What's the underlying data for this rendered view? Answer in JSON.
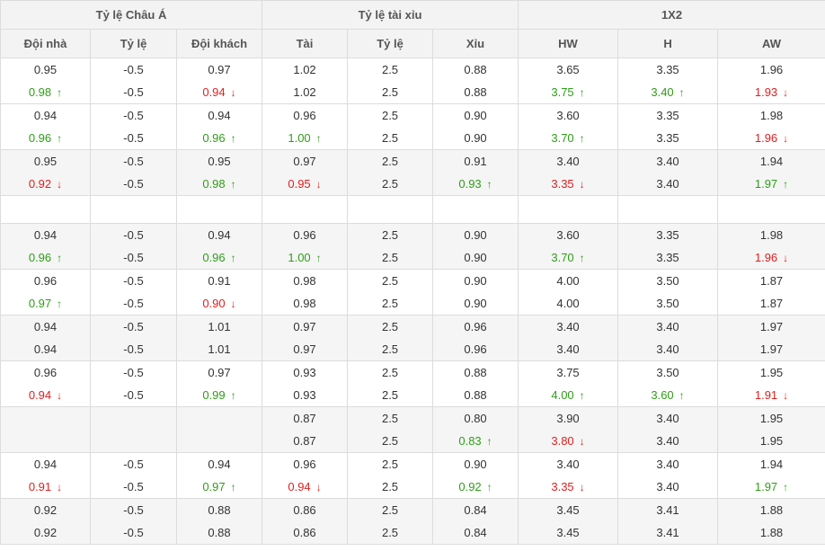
{
  "headers": {
    "groups": [
      "Tỷ lệ Châu Á",
      "Tỷ lệ tài xỉu",
      "1X2"
    ],
    "columns": [
      "Đội nhà",
      "Tỷ lệ",
      "Đội khách",
      "Tài",
      "Tỷ lệ",
      "Xỉu",
      "HW",
      "H",
      "AW"
    ]
  },
  "colors": {
    "up": "#2e9e17",
    "down": "#e02020",
    "neutral": "#333333"
  },
  "rows": [
    {
      "alt": false,
      "blank": false,
      "cells": [
        {
          "top": "0.95",
          "bottom": "0.98",
          "trend": "up"
        },
        {
          "top": "-0.5",
          "bottom": "-0.5",
          "trend": ""
        },
        {
          "top": "0.97",
          "bottom": "0.94",
          "trend": "down"
        },
        {
          "top": "1.02",
          "bottom": "1.02",
          "trend": ""
        },
        {
          "top": "2.5",
          "bottom": "2.5",
          "trend": ""
        },
        {
          "top": "0.88",
          "bottom": "0.88",
          "trend": ""
        },
        {
          "top": "3.65",
          "bottom": "3.75",
          "trend": "up"
        },
        {
          "top": "3.35",
          "bottom": "3.40",
          "trend": "up"
        },
        {
          "top": "1.96",
          "bottom": "1.93",
          "trend": "down"
        }
      ]
    },
    {
      "alt": false,
      "blank": false,
      "cells": [
        {
          "top": "0.94",
          "bottom": "0.96",
          "trend": "up"
        },
        {
          "top": "-0.5",
          "bottom": "-0.5",
          "trend": ""
        },
        {
          "top": "0.94",
          "bottom": "0.96",
          "trend": "up"
        },
        {
          "top": "0.96",
          "bottom": "1.00",
          "trend": "up"
        },
        {
          "top": "2.5",
          "bottom": "2.5",
          "trend": ""
        },
        {
          "top": "0.90",
          "bottom": "0.90",
          "trend": ""
        },
        {
          "top": "3.60",
          "bottom": "3.70",
          "trend": "up"
        },
        {
          "top": "3.35",
          "bottom": "3.35",
          "trend": ""
        },
        {
          "top": "1.98",
          "bottom": "1.96",
          "trend": "down"
        }
      ]
    },
    {
      "alt": true,
      "blank": false,
      "cells": [
        {
          "top": "0.95",
          "bottom": "0.92",
          "trend": "down"
        },
        {
          "top": "-0.5",
          "bottom": "-0.5",
          "trend": ""
        },
        {
          "top": "0.95",
          "bottom": "0.98",
          "trend": "up"
        },
        {
          "top": "0.97",
          "bottom": "0.95",
          "trend": "down"
        },
        {
          "top": "2.5",
          "bottom": "2.5",
          "trend": ""
        },
        {
          "top": "0.91",
          "bottom": "0.93",
          "trend": "up"
        },
        {
          "top": "3.40",
          "bottom": "3.35",
          "trend": "down"
        },
        {
          "top": "3.40",
          "bottom": "3.40",
          "trend": ""
        },
        {
          "top": "1.94",
          "bottom": "1.97",
          "trend": "up"
        }
      ]
    },
    {
      "alt": false,
      "blank": true,
      "cells": []
    },
    {
      "alt": true,
      "blank": false,
      "cells": [
        {
          "top": "0.94",
          "bottom": "0.96",
          "trend": "up"
        },
        {
          "top": "-0.5",
          "bottom": "-0.5",
          "trend": ""
        },
        {
          "top": "0.94",
          "bottom": "0.96",
          "trend": "up"
        },
        {
          "top": "0.96",
          "bottom": "1.00",
          "trend": "up"
        },
        {
          "top": "2.5",
          "bottom": "2.5",
          "trend": ""
        },
        {
          "top": "0.90",
          "bottom": "0.90",
          "trend": ""
        },
        {
          "top": "3.60",
          "bottom": "3.70",
          "trend": "up"
        },
        {
          "top": "3.35",
          "bottom": "3.35",
          "trend": ""
        },
        {
          "top": "1.98",
          "bottom": "1.96",
          "trend": "down"
        }
      ]
    },
    {
      "alt": false,
      "blank": false,
      "cells": [
        {
          "top": "0.96",
          "bottom": "0.97",
          "trend": "up"
        },
        {
          "top": "-0.5",
          "bottom": "-0.5",
          "trend": ""
        },
        {
          "top": "0.91",
          "bottom": "0.90",
          "trend": "down"
        },
        {
          "top": "0.98",
          "bottom": "0.98",
          "trend": ""
        },
        {
          "top": "2.5",
          "bottom": "2.5",
          "trend": ""
        },
        {
          "top": "0.90",
          "bottom": "0.90",
          "trend": ""
        },
        {
          "top": "4.00",
          "bottom": "4.00",
          "trend": ""
        },
        {
          "top": "3.50",
          "bottom": "3.50",
          "trend": ""
        },
        {
          "top": "1.87",
          "bottom": "1.87",
          "trend": ""
        }
      ]
    },
    {
      "alt": true,
      "blank": false,
      "cells": [
        {
          "top": "0.94",
          "bottom": "0.94",
          "trend": ""
        },
        {
          "top": "-0.5",
          "bottom": "-0.5",
          "trend": ""
        },
        {
          "top": "1.01",
          "bottom": "1.01",
          "trend": ""
        },
        {
          "top": "0.97",
          "bottom": "0.97",
          "trend": ""
        },
        {
          "top": "2.5",
          "bottom": "2.5",
          "trend": ""
        },
        {
          "top": "0.96",
          "bottom": "0.96",
          "trend": ""
        },
        {
          "top": "3.40",
          "bottom": "3.40",
          "trend": ""
        },
        {
          "top": "3.40",
          "bottom": "3.40",
          "trend": ""
        },
        {
          "top": "1.97",
          "bottom": "1.97",
          "trend": ""
        }
      ]
    },
    {
      "alt": false,
      "blank": false,
      "cells": [
        {
          "top": "0.96",
          "bottom": "0.94",
          "trend": "down"
        },
        {
          "top": "-0.5",
          "bottom": "-0.5",
          "trend": ""
        },
        {
          "top": "0.97",
          "bottom": "0.99",
          "trend": "up"
        },
        {
          "top": "0.93",
          "bottom": "0.93",
          "trend": ""
        },
        {
          "top": "2.5",
          "bottom": "2.5",
          "trend": ""
        },
        {
          "top": "0.88",
          "bottom": "0.88",
          "trend": ""
        },
        {
          "top": "3.75",
          "bottom": "4.00",
          "trend": "up"
        },
        {
          "top": "3.50",
          "bottom": "3.60",
          "trend": "up"
        },
        {
          "top": "1.95",
          "bottom": "1.91",
          "trend": "down"
        }
      ]
    },
    {
      "alt": true,
      "blank": false,
      "cells": [
        {
          "top": "",
          "bottom": "",
          "trend": ""
        },
        {
          "top": "",
          "bottom": "",
          "trend": ""
        },
        {
          "top": "",
          "bottom": "",
          "trend": ""
        },
        {
          "top": "0.87",
          "bottom": "0.87",
          "trend": ""
        },
        {
          "top": "2.5",
          "bottom": "2.5",
          "trend": ""
        },
        {
          "top": "0.80",
          "bottom": "0.83",
          "trend": "up"
        },
        {
          "top": "3.90",
          "bottom": "3.80",
          "trend": "down"
        },
        {
          "top": "3.40",
          "bottom": "3.40",
          "trend": ""
        },
        {
          "top": "1.95",
          "bottom": "1.95",
          "trend": ""
        }
      ]
    },
    {
      "alt": false,
      "blank": false,
      "cells": [
        {
          "top": "0.94",
          "bottom": "0.91",
          "trend": "down"
        },
        {
          "top": "-0.5",
          "bottom": "-0.5",
          "trend": ""
        },
        {
          "top": "0.94",
          "bottom": "0.97",
          "trend": "up"
        },
        {
          "top": "0.96",
          "bottom": "0.94",
          "trend": "down"
        },
        {
          "top": "2.5",
          "bottom": "2.5",
          "trend": ""
        },
        {
          "top": "0.90",
          "bottom": "0.92",
          "trend": "up"
        },
        {
          "top": "3.40",
          "bottom": "3.35",
          "trend": "down"
        },
        {
          "top": "3.40",
          "bottom": "3.40",
          "trend": ""
        },
        {
          "top": "1.94",
          "bottom": "1.97",
          "trend": "up"
        }
      ]
    },
    {
      "alt": true,
      "blank": false,
      "cells": [
        {
          "top": "0.92",
          "bottom": "0.92",
          "trend": ""
        },
        {
          "top": "-0.5",
          "bottom": "-0.5",
          "trend": ""
        },
        {
          "top": "0.88",
          "bottom": "0.88",
          "trend": ""
        },
        {
          "top": "0.86",
          "bottom": "0.86",
          "trend": ""
        },
        {
          "top": "2.5",
          "bottom": "2.5",
          "trend": ""
        },
        {
          "top": "0.84",
          "bottom": "0.84",
          "trend": ""
        },
        {
          "top": "3.45",
          "bottom": "3.45",
          "trend": ""
        },
        {
          "top": "3.41",
          "bottom": "3.41",
          "trend": ""
        },
        {
          "top": "1.88",
          "bottom": "1.88",
          "trend": ""
        }
      ]
    }
  ]
}
